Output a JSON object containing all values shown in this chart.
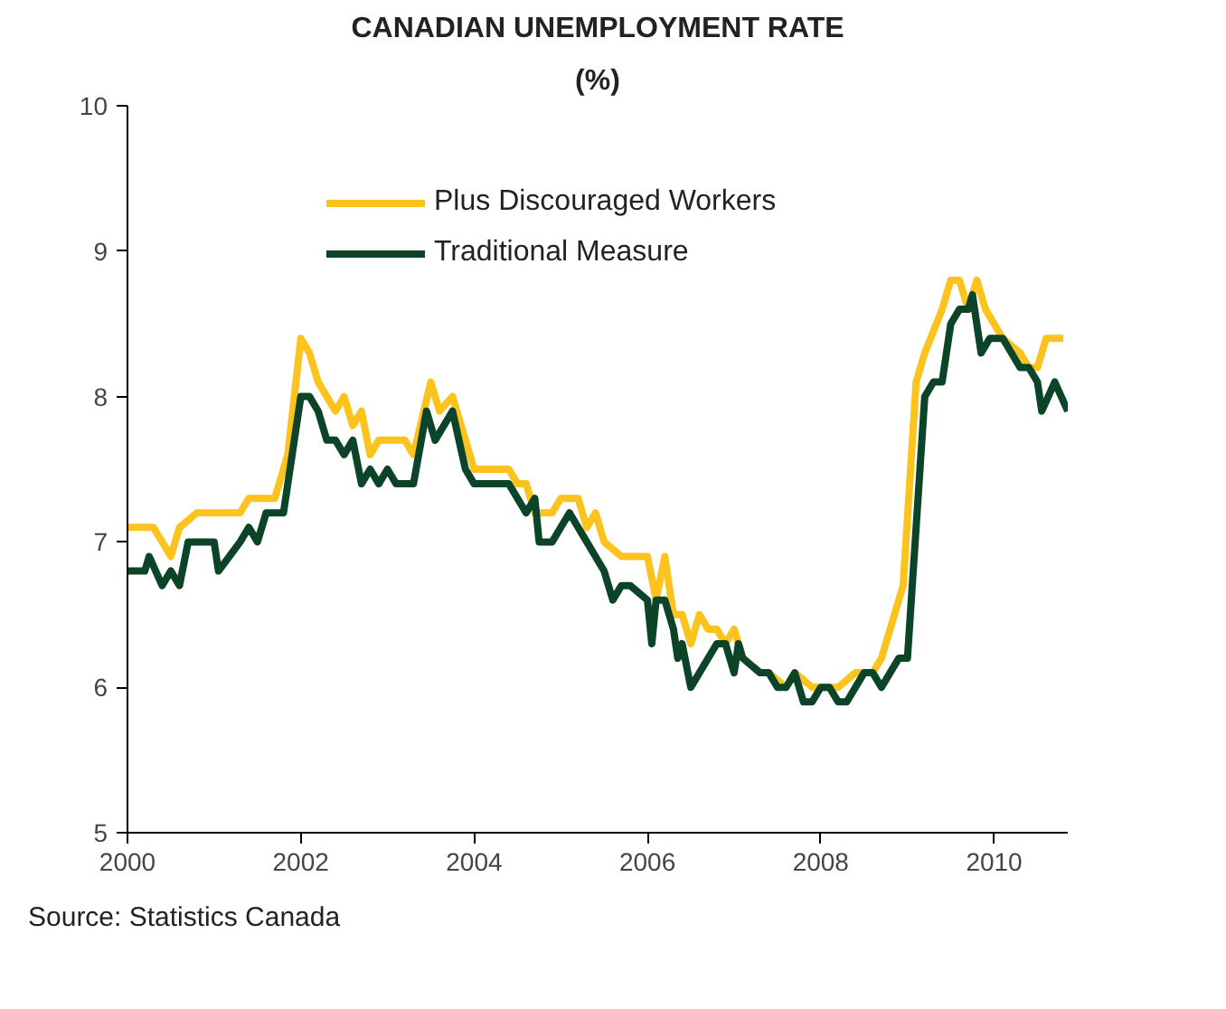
{
  "chart_data": {
    "type": "line",
    "title": "CANADIAN UNEMPLOYMENT RATE",
    "subtitle": "(%)",
    "annotations": [
      "Source: Statistics Canada"
    ],
    "xlim": [
      2000,
      2010.85
    ],
    "xticks": [
      2000,
      2002,
      2004,
      2006,
      2008,
      2010
    ],
    "ylim": [
      5,
      10
    ],
    "yticks": [
      5,
      6,
      7,
      8,
      9,
      10
    ],
    "grid": false,
    "legend": "top left",
    "line_style": "solid",
    "series": [
      {
        "name": "Plus Discouraged Workers",
        "color": "#fcc31f",
        "x": [
          2000.0,
          2000.3,
          2000.5,
          2000.6,
          2000.8,
          2001.3,
          2001.4,
          2001.7,
          2001.75,
          2001.85,
          2002.0,
          2002.1,
          2002.2,
          2002.3,
          2002.4,
          2002.5,
          2002.6,
          2002.7,
          2002.8,
          2002.9,
          2003.0,
          2003.2,
          2003.3,
          2003.5,
          2003.6,
          2003.75,
          2003.9,
          2004.0,
          2004.4,
          2004.5,
          2004.6,
          2004.7,
          2004.9,
          2005.0,
          2005.2,
          2005.3,
          2005.4,
          2005.5,
          2005.7,
          2006.0,
          2006.1,
          2006.2,
          2006.3,
          2006.4,
          2006.5,
          2006.6,
          2006.7,
          2006.8,
          2006.9,
          2007.0,
          2007.1,
          2007.3,
          2007.4,
          2007.6,
          2007.7,
          2007.9,
          2008.0,
          2008.2,
          2008.4,
          2008.6,
          2008.7,
          2008.8,
          2008.95,
          2009.1,
          2009.2,
          2009.4,
          2009.5,
          2009.6,
          2009.7,
          2009.8,
          2009.9,
          2010.0,
          2010.1,
          2010.3,
          2010.4,
          2010.5,
          2010.6,
          2010.8
        ],
        "values": [
          7.1,
          7.1,
          6.9,
          7.1,
          7.2,
          7.2,
          7.3,
          7.3,
          7.4,
          7.6,
          8.4,
          8.3,
          8.1,
          8.0,
          7.9,
          8.0,
          7.8,
          7.9,
          7.6,
          7.7,
          7.7,
          7.7,
          7.6,
          8.1,
          7.9,
          8.0,
          7.7,
          7.5,
          7.5,
          7.4,
          7.4,
          7.2,
          7.2,
          7.3,
          7.3,
          7.1,
          7.2,
          7.0,
          6.9,
          6.9,
          6.6,
          6.9,
          6.5,
          6.5,
          6.3,
          6.5,
          6.4,
          6.4,
          6.3,
          6.4,
          6.2,
          6.1,
          6.1,
          6.0,
          6.1,
          6.0,
          6.0,
          6.0,
          6.1,
          6.1,
          6.2,
          6.4,
          6.7,
          8.1,
          8.3,
          8.6,
          8.8,
          8.8,
          8.6,
          8.8,
          8.6,
          8.5,
          8.4,
          8.3,
          8.2,
          8.2,
          8.4,
          8.4
        ]
      },
      {
        "name": "Traditional Measure",
        "color": "#0b4428",
        "x": [
          2000.0,
          2000.2,
          2000.25,
          2000.4,
          2000.5,
          2000.6,
          2000.7,
          2001.0,
          2001.05,
          2001.3,
          2001.4,
          2001.5,
          2001.6,
          2001.8,
          2001.9,
          2002.0,
          2002.1,
          2002.2,
          2002.3,
          2002.4,
          2002.5,
          2002.6,
          2002.7,
          2002.8,
          2002.9,
          2003.0,
          2003.1,
          2003.3,
          2003.45,
          2003.55,
          2003.75,
          2003.9,
          2004.0,
          2004.4,
          2004.6,
          2004.7,
          2004.75,
          2004.9,
          2005.1,
          2005.3,
          2005.4,
          2005.5,
          2005.6,
          2005.7,
          2005.8,
          2006.0,
          2006.05,
          2006.1,
          2006.2,
          2006.3,
          2006.35,
          2006.4,
          2006.5,
          2006.6,
          2006.8,
          2006.9,
          2007.0,
          2007.05,
          2007.1,
          2007.3,
          2007.4,
          2007.5,
          2007.6,
          2007.7,
          2007.8,
          2007.9,
          2008.0,
          2008.1,
          2008.2,
          2008.3,
          2008.5,
          2008.6,
          2008.7,
          2008.8,
          2008.9,
          2009.0,
          2009.2,
          2009.3,
          2009.4,
          2009.5,
          2009.6,
          2009.7,
          2009.75,
          2009.85,
          2009.95,
          2010.1,
          2010.3,
          2010.4,
          2010.5,
          2010.55,
          2010.7,
          2010.85
        ],
        "values": [
          6.8,
          6.8,
          6.9,
          6.7,
          6.8,
          6.7,
          7.0,
          7.0,
          6.8,
          7.0,
          7.1,
          7.0,
          7.2,
          7.2,
          7.6,
          8.0,
          8.0,
          7.9,
          7.7,
          7.7,
          7.6,
          7.7,
          7.4,
          7.5,
          7.4,
          7.5,
          7.4,
          7.4,
          7.9,
          7.7,
          7.9,
          7.5,
          7.4,
          7.4,
          7.2,
          7.3,
          7.0,
          7.0,
          7.2,
          7.0,
          6.9,
          6.8,
          6.6,
          6.7,
          6.7,
          6.6,
          6.3,
          6.6,
          6.6,
          6.4,
          6.2,
          6.3,
          6.0,
          6.1,
          6.3,
          6.3,
          6.1,
          6.3,
          6.2,
          6.1,
          6.1,
          6.0,
          6.0,
          6.1,
          5.9,
          5.9,
          6.0,
          6.0,
          5.9,
          5.9,
          6.1,
          6.1,
          6.0,
          6.1,
          6.2,
          6.2,
          8.0,
          8.1,
          8.1,
          8.5,
          8.6,
          8.6,
          8.7,
          8.3,
          8.4,
          8.4,
          8.2,
          8.2,
          8.1,
          7.9,
          8.1,
          7.9
        ]
      }
    ]
  }
}
